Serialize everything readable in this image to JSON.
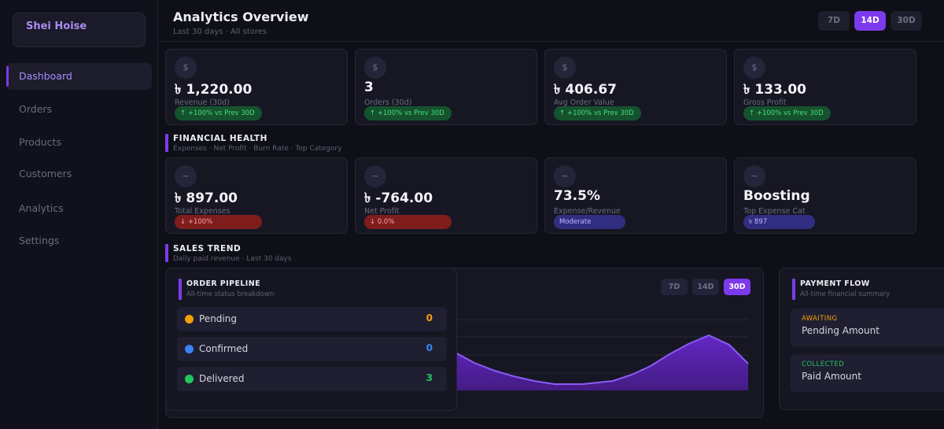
{
  "sidebar": {
    "brand": "Shei Hoise",
    "items": [
      {
        "label": "Dashboard",
        "active": true
      },
      {
        "label": "Orders"
      },
      {
        "label": "Products"
      },
      {
        "label": "Customers"
      },
      {
        "label": "Analytics"
      },
      {
        "label": "Settings"
      }
    ]
  },
  "header": {
    "title": "Analytics Overview",
    "subtitle": "Last 30 days  ·  All stores",
    "ranges": [
      "7D",
      "14D",
      "30D"
    ],
    "active_range": "14D"
  },
  "kpis": [
    {
      "icon": "$",
      "value": "৳ 1,220.00",
      "label": "Revenue (30d)",
      "badge": "↑ +100% vs Prev 30D"
    },
    {
      "icon": "$",
      "value": "3",
      "label": "Orders (30d)",
      "badge": "↑ +100% vs Prev 30D"
    },
    {
      "icon": "$",
      "value": "৳ 406.67",
      "label": "Avg Order Value",
      "badge": "↑ +100% vs Prev 30D"
    },
    {
      "icon": "$",
      "value": "৳ 133.00",
      "label": "Gross Profit",
      "badge": "↑ +100% vs Prev 30D"
    }
  ],
  "financial_health": {
    "title": "FINANCIAL HEALTH",
    "subtitle": "Expenses · Net Profit · Burn Rate · Top Category",
    "cards": [
      {
        "icon": "~",
        "value": "৳ 897.00",
        "label": "Total Expenses",
        "badge": "↓ +100%"
      },
      {
        "icon": "~",
        "value": "৳ -764.00",
        "label": "Net Profit",
        "badge": "↓ 0.0%"
      },
      {
        "icon": "~",
        "value": "73.5%",
        "label": "Expense/Revenue",
        "badge": "Moderate"
      },
      {
        "icon": "~",
        "value": "Boosting",
        "label": "Top Expense Cat",
        "badge": "৳ 897"
      }
    ]
  },
  "sales_trend": {
    "title": "SALES TREND",
    "subtitle": "Daily paid revenue · Last 30 days",
    "ranges": [
      "7D",
      "14D",
      "30D"
    ],
    "active_range": "30D"
  },
  "order_pipeline": {
    "title": "ORDER PIPELINE",
    "subtitle": "All-time status breakdown",
    "rows": [
      {
        "label": "Pending",
        "count": "0",
        "color": "#f59e0b"
      },
      {
        "label": "Confirmed",
        "count": "0",
        "color": "#3b82f6"
      },
      {
        "label": "Delivered",
        "count": "3",
        "color": "#22c55e"
      }
    ]
  },
  "payment_flow": {
    "title": "PAYMENT FLOW",
    "subtitle": "All-time financial summary",
    "boxes": [
      {
        "key": "AWAITING",
        "label": "Pending Amount",
        "color": "#f59e0b"
      },
      {
        "key": "COLLECTED",
        "label": "Paid Amount",
        "color": "#22c55e"
      }
    ]
  },
  "colors": {
    "accent": "#7c3aed",
    "positive": "#4ade80",
    "negative": "#fca5a5"
  }
}
